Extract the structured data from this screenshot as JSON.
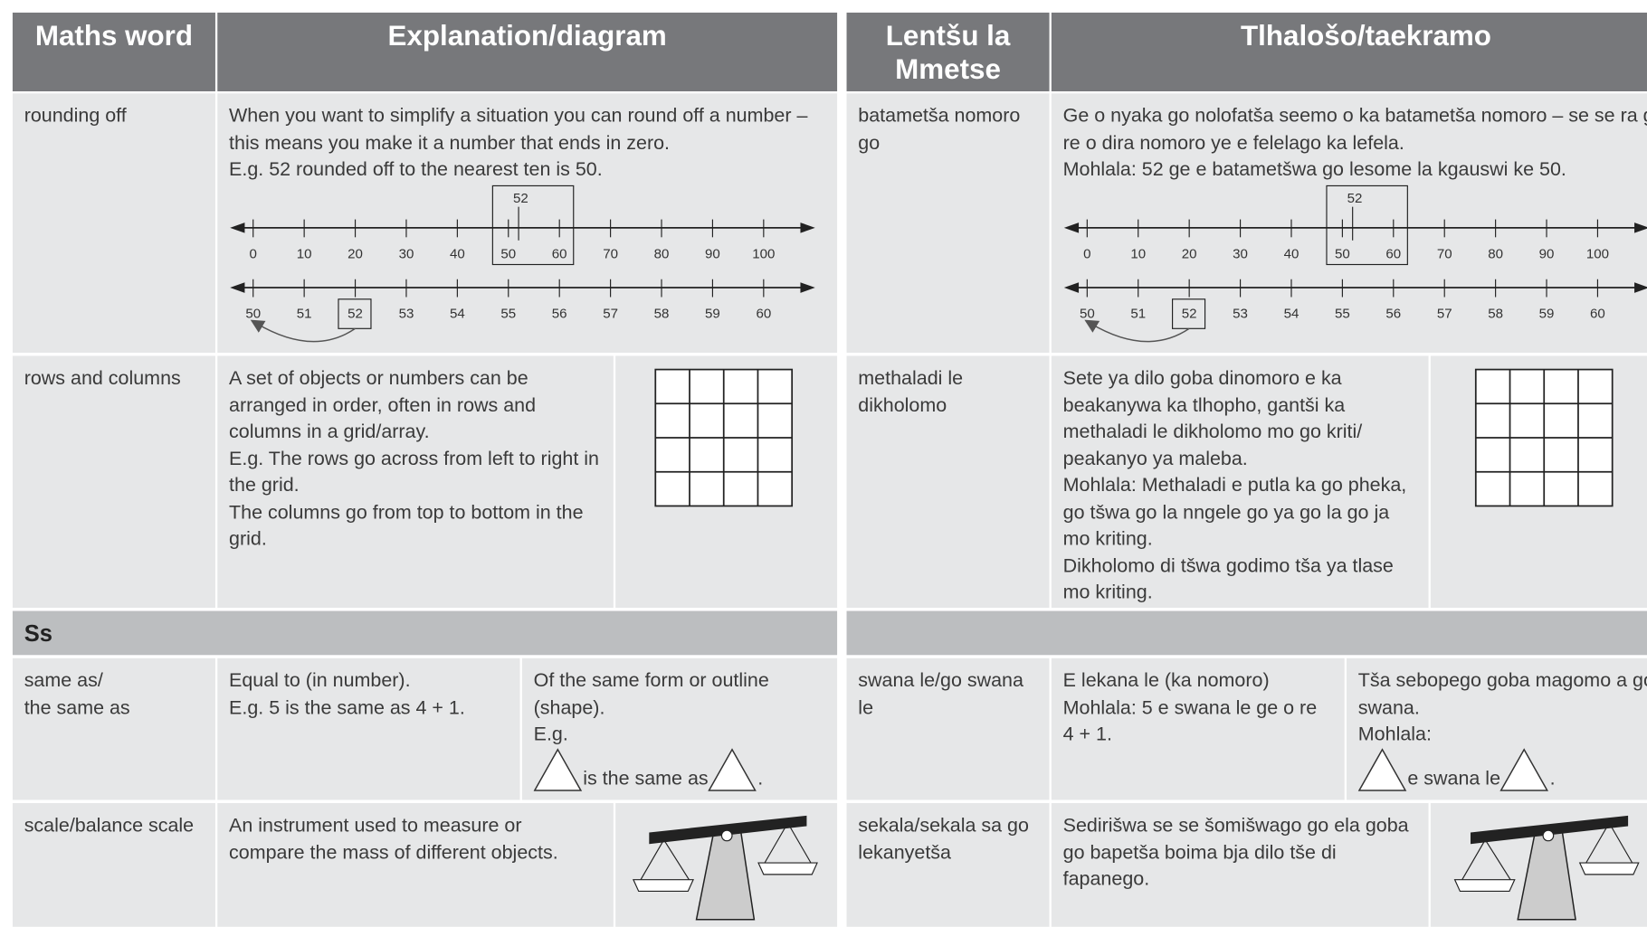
{
  "tables": [
    {
      "headers": [
        "Maths word",
        "Explanation/diagram"
      ],
      "section": "Ss",
      "rows": [
        {
          "term": [
            "rounding off"
          ],
          "text": [
            "When you want to simplify a situation you can round off a number – this means you make it a number that ends in zero.",
            "E.g. 52 rounded off to the nearest ten is 50."
          ],
          "number_line": {
            "top": [
              0,
              10,
              20,
              30,
              40,
              50,
              60,
              70,
              80,
              90,
              100
            ],
            "marker": 52,
            "bottom": [
              50,
              51,
              52,
              53,
              54,
              55,
              56,
              57,
              58,
              59,
              60
            ]
          }
        },
        {
          "term": [
            "rows and columns"
          ],
          "text": [
            "A set of objects or numbers can be arranged in order, often in rows and columns in a grid/array.",
            "E.g. The rows go across from left to right in the grid.",
            "The columns go from top to bottom in the grid."
          ]
        },
        {
          "term": [
            "same as/",
            "the same as"
          ],
          "text": [
            "Equal to (in number).",
            "E.g. 5 is the same as 4 + 1."
          ],
          "shape_text": [
            "Of the same form or outline (shape).",
            "E.g."
          ],
          "shape_phrase": "is the same as"
        },
        {
          "term": [
            "scale/balance scale"
          ],
          "text": [
            "An instrument used to measure or compare the mass of different objects."
          ]
        }
      ]
    },
    {
      "headers": [
        "Lentšu la Mmetse",
        "Tlhalošo/taekramo"
      ],
      "rows": [
        {
          "term": [
            "batametša nomoro",
            "go"
          ],
          "text": [
            "Ge o nyaka go nolofatša seemo o ka batametša nomoro – se se ra go re o dira nomoro ye e felelago ka lefela.",
            "Mohlala: 52 ge e batametšwa go lesome la kgauswi ke 50."
          ],
          "number_line": {
            "top": [
              0,
              10,
              20,
              30,
              40,
              50,
              60,
              70,
              80,
              90,
              100
            ],
            "marker": 52,
            "bottom": [
              50,
              51,
              52,
              53,
              54,
              55,
              56,
              57,
              58,
              59,
              60
            ]
          }
        },
        {
          "term": [
            "methaladi le",
            "dikholomo"
          ],
          "text": [
            "Sete ya dilo goba dinomoro e ka beakanywa ka tlhopho, gantši ka methaladi le dikholomo mo go kriti/ peakanyo ya maleba.",
            "Mohlala: Methaladi e putla ka go pheka, go tšwa go la nngele go ya go la go ja mo kriting.",
            "Dikholomo di tšwa godimo tša ya tlase mo kriting."
          ]
        },
        {
          "term": [
            "swana le/go swana",
            "le"
          ],
          "text": [
            "E lekana le (ka nomoro)",
            "Mohlala: 5 e swana le ge o re 4 + 1."
          ],
          "shape_text": [
            "Tša sebopego goba magomo a go swana.",
            "Mohlala:"
          ],
          "shape_phrase": "e swana le"
        },
        {
          "term": [
            "sekala/sekala sa go",
            "lekanyetša"
          ],
          "text": [
            "Sedirišwa se se šomišwago go ela goba go bapetša boima bja dilo tše di fapanego."
          ]
        }
      ]
    }
  ]
}
